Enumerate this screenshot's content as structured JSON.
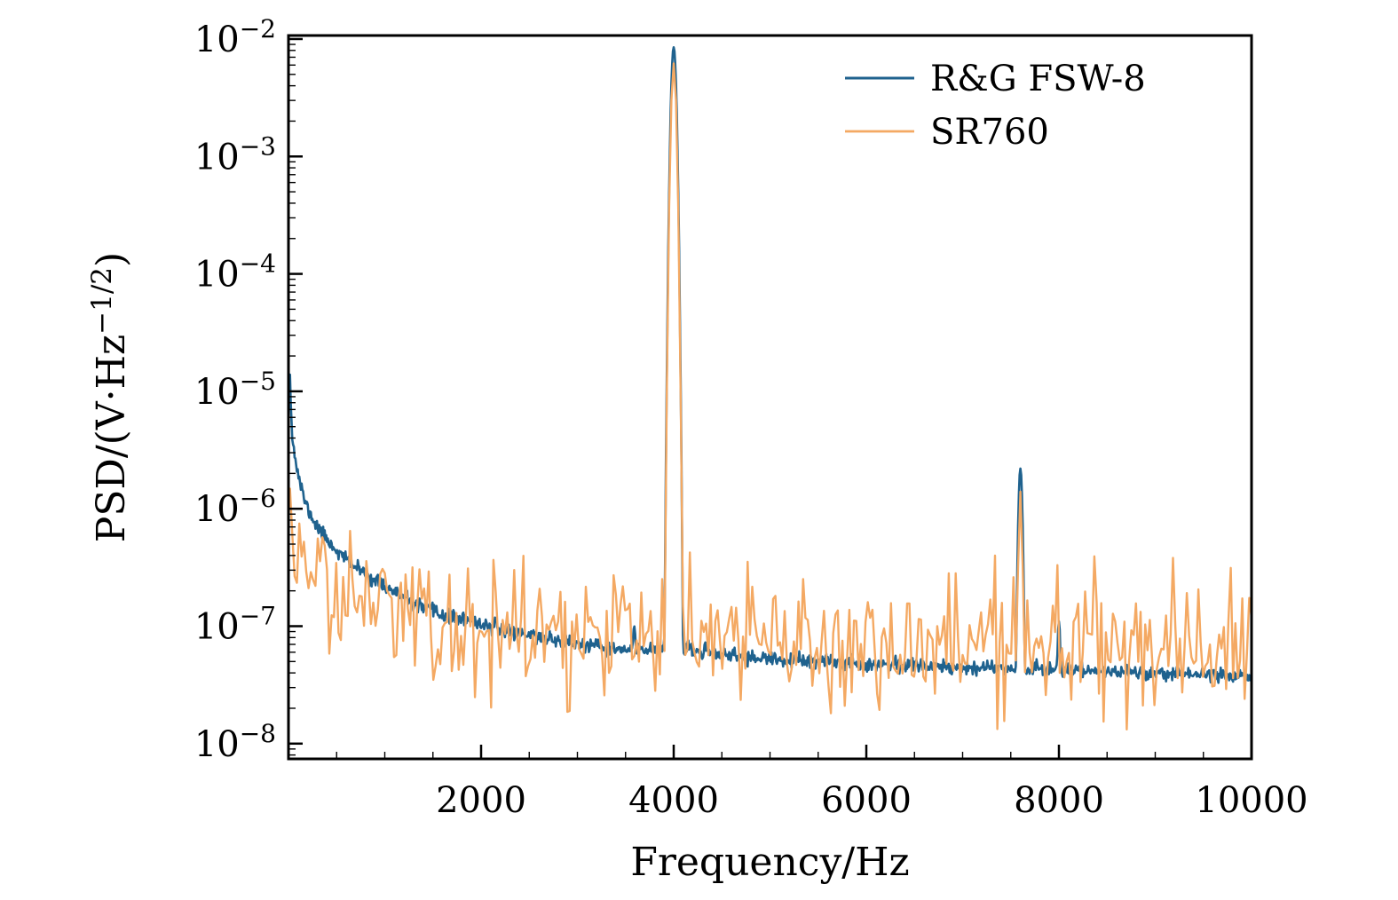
{
  "figure": {
    "background": "#ffffff"
  },
  "chart_data": {
    "type": "line",
    "title": "",
    "xlabel": "Frequency/Hz",
    "ylabel": "PSD/(V·Hz^-1/2)",
    "ylabel_rich": [
      {
        "t": "PSD/(V·Hz",
        "sup": false
      },
      {
        "t": "−1/2",
        "sup": true
      },
      {
        "t": ")",
        "sup": false
      }
    ],
    "xscale": "linear",
    "yscale": "log",
    "xlim": [
      0,
      10000
    ],
    "ylim": [
      1e-08,
      0.01
    ],
    "x_ticks": [
      2000,
      4000,
      6000,
      8000,
      10000
    ],
    "x_minor_tick_step_hz": 500,
    "y_tick_exponents": [
      -2,
      -3,
      -4,
      -5,
      -6,
      -7,
      -8
    ],
    "grid": false,
    "legend": {
      "position": "upper right",
      "frame": false
    },
    "series": [
      {
        "name": "R&G FSW-8",
        "color": "#1f628e",
        "line_width": 2.6,
        "f_start_hz": 16,
        "sample_step_hz": 8,
        "noise_dex": 0.03,
        "baseline_anchors": [
          [
            16,
            1.5e-05
          ],
          [
            30,
            6e-06
          ],
          [
            60,
            3e-06
          ],
          [
            100,
            2e-06
          ],
          [
            200,
            1e-06
          ],
          [
            400,
            5.5e-07
          ],
          [
            700,
            3.2e-07
          ],
          [
            1000,
            2.2e-07
          ],
          [
            1300,
            1.55e-07
          ],
          [
            1600,
            1.25e-07
          ],
          [
            2000,
            1.05e-07
          ],
          [
            2500,
            8.5e-08
          ],
          [
            3000,
            7e-08
          ],
          [
            3500,
            6.2e-08
          ],
          [
            4000,
            6.5e-08
          ],
          [
            4500,
            5.8e-08
          ],
          [
            5000,
            5.2e-08
          ],
          [
            6000,
            4.8e-08
          ],
          [
            7000,
            4.5e-08
          ],
          [
            8000,
            4.3e-08
          ],
          [
            9000,
            4e-08
          ],
          [
            10000,
            3.8e-08
          ]
        ],
        "peaks": [
          {
            "freq_hz": 4000,
            "amplitude": 0.0085,
            "sigma_hz": 20
          },
          {
            "freq_hz": 3590,
            "amplitude": 1e-07,
            "sigma_hz": 18
          },
          {
            "freq_hz": 7600,
            "amplitude": 2.2e-06,
            "sigma_hz": 16
          },
          {
            "freq_hz": 8000,
            "amplitude": 1.1e-07,
            "sigma_hz": 14
          }
        ]
      },
      {
        "name": "SR760",
        "color": "#f4a963",
        "line_width": 2.4,
        "f_start_hz": 16,
        "sample_step_hz": 24,
        "noise_dex": 0.28,
        "baseline_anchors": [
          [
            16,
            1.3e-06
          ],
          [
            50,
            8e-07
          ],
          [
            100,
            5.5e-07
          ],
          [
            200,
            3.5e-07
          ],
          [
            400,
            2.2e-07
          ],
          [
            700,
            1.6e-07
          ],
          [
            1000,
            1.3e-07
          ],
          [
            1500,
            1.05e-07
          ],
          [
            2000,
            9e-08
          ],
          [
            3000,
            8e-08
          ],
          [
            4000,
            7.5e-08
          ],
          [
            5000,
            7.2e-08
          ],
          [
            6000,
            7e-08
          ],
          [
            8000,
            7e-08
          ],
          [
            10000,
            6.5e-08
          ]
        ],
        "peaks": [
          {
            "freq_hz": 4000,
            "amplitude": 0.0062,
            "sigma_hz": 20
          },
          {
            "freq_hz": 7600,
            "amplitude": 1.4e-06,
            "sigma_hz": 14
          },
          {
            "freq_hz": 7980,
            "amplitude": 3.5e-07,
            "sigma_hz": 12
          }
        ]
      }
    ]
  }
}
